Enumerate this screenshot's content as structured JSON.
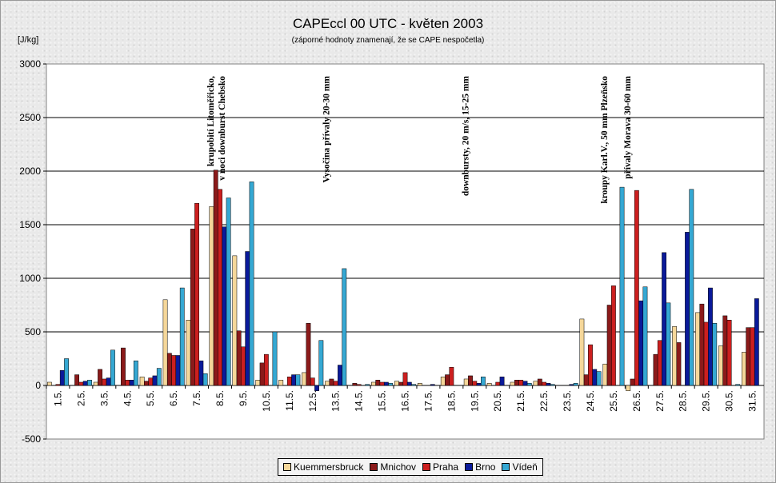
{
  "chart_data": {
    "type": "bar",
    "title": "CAPEccl 00 UTC - květen 2003",
    "subtitle": "(záporné hodnoty znamenají, že se CAPE nespočetla)",
    "ylabel": "[J/kg]",
    "ylim": [
      -500,
      3000
    ],
    "yticks": [
      -500,
      0,
      500,
      1000,
      1500,
      2000,
      2500,
      3000
    ],
    "grid": true,
    "legend_position": "bottom",
    "categories": [
      "1.5.",
      "2.5.",
      "3.5.",
      "4.5.",
      "5.5.",
      "6.5.",
      "7.5.",
      "8.5.",
      "9.5.",
      "10.5.",
      "11.5.",
      "12.5.",
      "13.5.",
      "14.5.",
      "15.5.",
      "16.5.",
      "17.5.",
      "18.5.",
      "19.5.",
      "20.5.",
      "21.5.",
      "22.5.",
      "23.5.",
      "24.5.",
      "25.5.",
      "26.5.",
      "27.5.",
      "28.5.",
      "29.5.",
      "30.5.",
      "31.5."
    ],
    "series": [
      {
        "name": "Kuemmersbruck",
        "color": "#f5d79a",
        "values": [
          30,
          0,
          30,
          0,
          80,
          800,
          610,
          1670,
          1210,
          50,
          50,
          120,
          40,
          0,
          30,
          40,
          20,
          80,
          60,
          20,
          30,
          40,
          0,
          620,
          200,
          -50,
          0,
          550,
          680,
          370,
          310
        ]
      },
      {
        "name": "Mnichov",
        "color": "#8b1a1a",
        "values": [
          0,
          100,
          150,
          350,
          40,
          300,
          1460,
          2010,
          510,
          210,
          0,
          580,
          60,
          20,
          50,
          30,
          0,
          100,
          90,
          0,
          50,
          60,
          0,
          100,
          750,
          60,
          290,
          400,
          760,
          650,
          540
        ]
      },
      {
        "name": "Praha",
        "color": "#cc1f1f",
        "values": [
          10,
          30,
          60,
          50,
          70,
          280,
          1700,
          1830,
          360,
          290,
          80,
          70,
          40,
          10,
          30,
          120,
          0,
          170,
          40,
          30,
          50,
          30,
          0,
          380,
          930,
          1820,
          420,
          0,
          590,
          610,
          540
        ]
      },
      {
        "name": "Brno",
        "color": "#0a1a9a",
        "values": [
          140,
          40,
          70,
          50,
          90,
          280,
          230,
          1480,
          1250,
          0,
          100,
          -50,
          190,
          0,
          30,
          30,
          10,
          0,
          20,
          80,
          40,
          20,
          10,
          150,
          0,
          790,
          1240,
          1430,
          910,
          0,
          810
        ]
      },
      {
        "name": "Vídeň",
        "color": "#35a8d3",
        "values": [
          250,
          50,
          330,
          230,
          160,
          910,
          110,
          1750,
          1900,
          500,
          100,
          420,
          1090,
          10,
          20,
          10,
          0,
          0,
          80,
          0,
          20,
          10,
          20,
          130,
          1850,
          920,
          770,
          1830,
          580,
          10,
          0
        ]
      }
    ],
    "annotations": [
      {
        "text": "krupobití Litoměřicko,",
        "category": "8.5."
      },
      {
        "text": "v noci downburst Chebsko",
        "category": "8.5."
      },
      {
        "text": "Vysočina přívaly 20-30 mm",
        "category": "13.5."
      },
      {
        "text": "downbursty, 20 m/s, 15-25 mm",
        "category": "19.5."
      },
      {
        "text": "kroupy Karl.V., 50 mm Plzeňsko",
        "category": "25.5."
      },
      {
        "text": "přívaly Morava 30-60 mm",
        "category": "26.5."
      }
    ]
  }
}
